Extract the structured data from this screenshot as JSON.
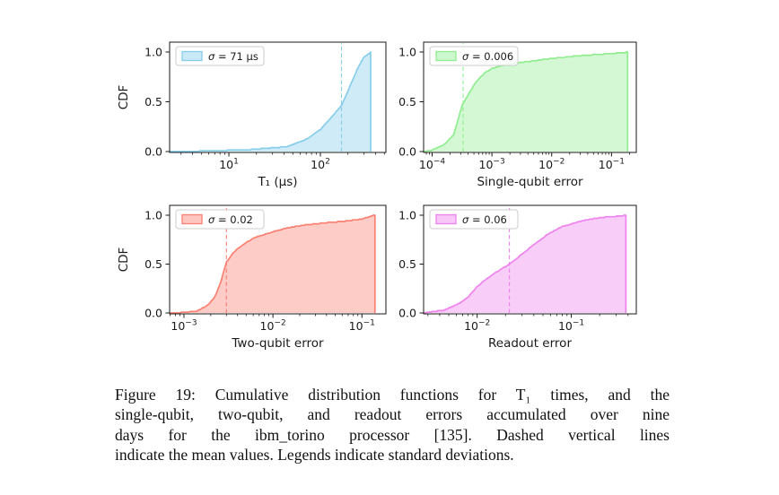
{
  "figure": {
    "caption_lines": [
      "Figure 19: Cumulative distribution functions for T₁ times, and the",
      "single-qubit, two-qubit, and readout errors accumulated over nine",
      "days for the ibm_torino processor [135]. Dashed vertical lines",
      "indicate the mean values. Legends indicate standard deviations."
    ]
  },
  "chart_data": [
    {
      "id": "t1",
      "type": "area",
      "title": "",
      "xlabel": "T₁ (μs)",
      "ylabel": "CDF",
      "legend": "σ = 71 μs",
      "legend_position": "upper left",
      "color": "#87ceeb",
      "fill_opacity": 0.4,
      "xscale": "log",
      "xlim": [
        2.25,
        520
      ],
      "ylim": [
        0,
        1
      ],
      "x_major_ticks": [
        10,
        100
      ],
      "y_ticks": [
        0.0,
        0.5,
        1.0
      ],
      "mean": 170,
      "points": [
        [
          2.25,
          0
        ],
        [
          5.7,
          0.005
        ],
        [
          17.6,
          0.02
        ],
        [
          43,
          0.05
        ],
        [
          68,
          0.115
        ],
        [
          100,
          0.22
        ],
        [
          134,
          0.35
        ],
        [
          172,
          0.47
        ],
        [
          209,
          0.65
        ],
        [
          251,
          0.82
        ],
        [
          295,
          0.94
        ],
        [
          331,
          0.98
        ],
        [
          354,
          1.0
        ]
      ]
    },
    {
      "id": "sq",
      "type": "area",
      "title": "",
      "xlabel": "Single-qubit error",
      "ylabel": "",
      "legend": "σ = 0.006",
      "legend_position": "upper left",
      "color": "#90ee90",
      "fill_opacity": 0.4,
      "xscale": "log",
      "xlim": [
        7.2e-05,
        0.26
      ],
      "ylim": [
        0,
        1
      ],
      "x_major_ticks": [
        0.0001,
        0.001,
        0.01,
        0.1
      ],
      "y_ticks": [
        0.0,
        0.5,
        1.0
      ],
      "mean": 0.00033,
      "points": [
        [
          7.2e-05,
          0
        ],
        [
          9.5e-05,
          0.01
        ],
        [
          0.00016,
          0.07
        ],
        [
          0.00023,
          0.17
        ],
        [
          0.00032,
          0.47
        ],
        [
          0.00041,
          0.58
        ],
        [
          0.00054,
          0.7
        ],
        [
          0.00076,
          0.79
        ],
        [
          0.001,
          0.835
        ],
        [
          0.0015,
          0.865
        ],
        [
          0.003,
          0.895
        ],
        [
          0.01,
          0.935
        ],
        [
          0.032,
          0.965
        ],
        [
          0.1,
          0.985
        ],
        [
          0.166,
          0.995
        ],
        [
          0.186,
          1.0
        ]
      ]
    },
    {
      "id": "tq",
      "type": "area",
      "title": "",
      "xlabel": "Two-qubit error",
      "ylabel": "CDF",
      "legend": "σ = 0.02",
      "legend_position": "upper left",
      "color": "#fa8072",
      "fill_opacity": 0.4,
      "xscale": "log",
      "xlim": [
        0.00069,
        0.186
      ],
      "ylim": [
        0,
        1
      ],
      "x_major_ticks": [
        0.001,
        0.01,
        0.1
      ],
      "y_ticks": [
        0.0,
        0.5,
        1.0
      ],
      "mean": 0.003,
      "points": [
        [
          0.00069,
          0
        ],
        [
          0.001,
          0.005
        ],
        [
          0.0014,
          0.02
        ],
        [
          0.00186,
          0.08
        ],
        [
          0.00224,
          0.17
        ],
        [
          0.0026,
          0.32
        ],
        [
          0.003,
          0.52
        ],
        [
          0.0036,
          0.62
        ],
        [
          0.0046,
          0.7
        ],
        [
          0.0062,
          0.77
        ],
        [
          0.01,
          0.83
        ],
        [
          0.0145,
          0.87
        ],
        [
          0.023,
          0.9
        ],
        [
          0.042,
          0.925
        ],
        [
          0.066,
          0.94
        ],
        [
          0.1,
          0.96
        ],
        [
          0.117,
          0.98
        ],
        [
          0.132,
          0.995
        ],
        [
          0.14,
          1.0
        ]
      ]
    },
    {
      "id": "ro",
      "type": "area",
      "title": "",
      "xlabel": "Readout error",
      "ylabel": "",
      "legend": "σ = 0.06",
      "legend_position": "upper left",
      "color": "#ee82ee",
      "fill_opacity": 0.4,
      "xscale": "log",
      "xlim": [
        0.0027,
        0.49
      ],
      "ylim": [
        0,
        1
      ],
      "x_major_ticks": [
        0.01,
        0.1
      ],
      "y_ticks": [
        0.0,
        0.5,
        1.0
      ],
      "mean": 0.022,
      "points": [
        [
          0.0027,
          0
        ],
        [
          0.0032,
          0.01
        ],
        [
          0.0045,
          0.03
        ],
        [
          0.0062,
          0.09
        ],
        [
          0.0078,
          0.15
        ],
        [
          0.01,
          0.27
        ],
        [
          0.013,
          0.36
        ],
        [
          0.0174,
          0.44
        ],
        [
          0.022,
          0.5
        ],
        [
          0.029,
          0.59
        ],
        [
          0.04,
          0.7
        ],
        [
          0.055,
          0.8
        ],
        [
          0.078,
          0.88
        ],
        [
          0.1,
          0.91
        ],
        [
          0.132,
          0.945
        ],
        [
          0.186,
          0.97
        ],
        [
          0.257,
          0.985
        ],
        [
          0.331,
          0.99
        ],
        [
          0.38,
          1.0
        ]
      ]
    }
  ]
}
